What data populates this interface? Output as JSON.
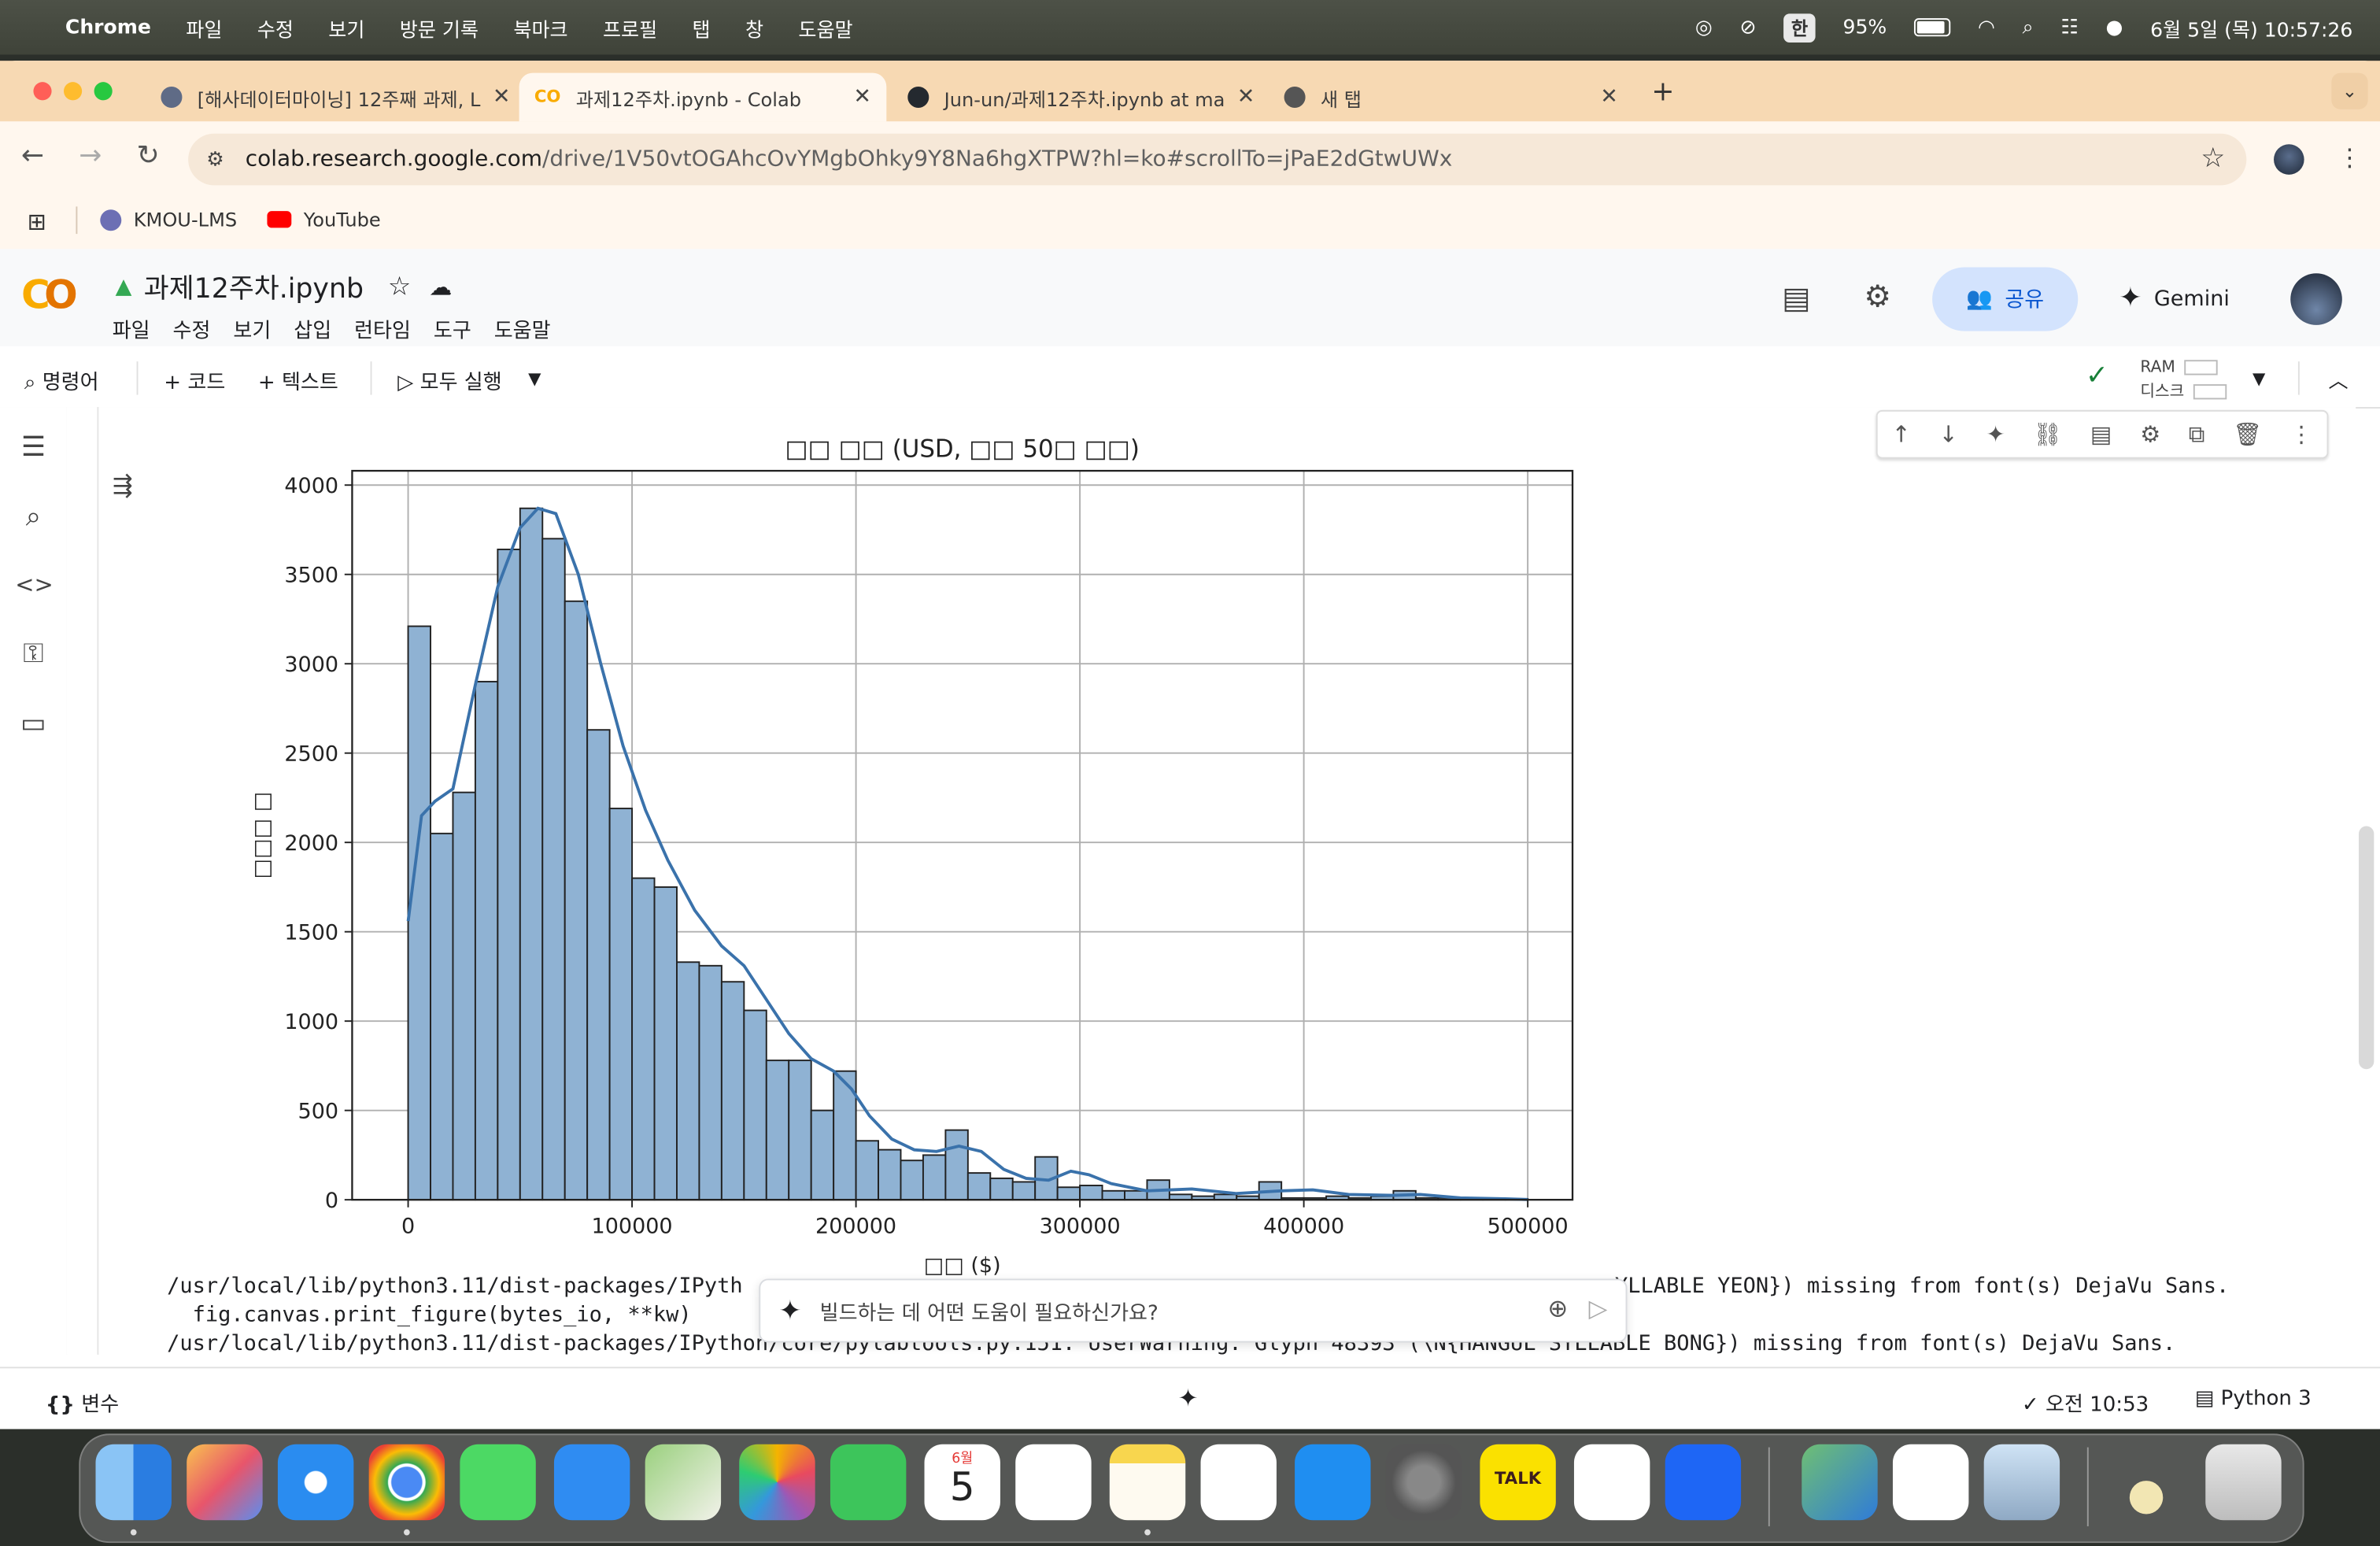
{
  "menubar": {
    "apple": "",
    "app_name": "Chrome",
    "items": [
      "파일",
      "수정",
      "보기",
      "방문 기록",
      "북마크",
      "프로필",
      "탭",
      "창",
      "도움말"
    ],
    "input_source": "한",
    "battery": "95%",
    "clock": "6월 5일 (목) 10:57:26"
  },
  "tabs": [
    {
      "title": "[해사데이터마이닝] 12주째 과제, L",
      "fav_color": "#5f6b86"
    },
    {
      "title": "과제12주차.ipynb - Colab",
      "fav_color": "#f9ab00",
      "active": true
    },
    {
      "title": "Jun-un/과제12주차.ipynb at ma",
      "fav_color": "#24292f"
    },
    {
      "title": "새 탭",
      "fav_color": "#555555"
    }
  ],
  "omnibox": {
    "host": "colab.research.google.com",
    "path": "/drive/1V50vtOGAhcOvYMgbOhky9Y8Na6hgXTPW?hl=ko#scrollTo=jPaE2dGtwUWx"
  },
  "bookmarks": [
    {
      "label": "KMOU-LMS"
    },
    {
      "label": "YouTube"
    }
  ],
  "colab": {
    "notebook_title": "과제12주차.ipynb",
    "menu": [
      "파일",
      "수정",
      "보기",
      "삽입",
      "런타임",
      "도구",
      "도움말"
    ],
    "share_label": "공유",
    "gemini_label": "Gemini",
    "toolbar": {
      "commands": "명령어",
      "add_code": "+ 코드",
      "add_text": "+ 텍스트",
      "run_all": "모두 실행",
      "ram": "RAM",
      "disk": "디스크"
    },
    "ai_placeholder": "빌드하는 데 어떤 도움이 필요하신가요?",
    "status": {
      "variables": "변수",
      "time": "오전 10:53",
      "kernel": "Python 3"
    }
  },
  "output": {
    "stderr_lines": [
      "/usr/local/lib/python3.11/dist-packages/IPyth",
      "YLLABLE YEON}) missing from font(s) DejaVu Sans.",
      "  fig.canvas.print_figure(bytes_io, **kw)",
      "/usr/local/lib/python3.11/dist-packages/IPython/core/pylabtools.py:151: UserWarning: Glyph 48393 (\\N{HANGUL SYLLABLE BONG}) missing from font(s) DejaVu Sans."
    ]
  },
  "chart_data": {
    "type": "bar",
    "title": "□□ □□ (USD, □□ 50□ □□)",
    "xlabel": "□□ ($)",
    "ylabel": "□□□ □",
    "xlim": [
      -25000,
      520000
    ],
    "ylim": [
      0,
      4080
    ],
    "x_ticks": [
      0,
      100000,
      200000,
      300000,
      400000,
      500000
    ],
    "y_ticks": [
      0,
      500,
      1000,
      1500,
      2000,
      2500,
      3000,
      3500,
      4000
    ],
    "bin_start": 0,
    "bin_width": 10000,
    "values": [
      3210,
      2050,
      2280,
      2900,
      3640,
      3870,
      3700,
      3350,
      2630,
      2190,
      1800,
      1750,
      1330,
      1310,
      1220,
      1060,
      780,
      780,
      500,
      720,
      330,
      280,
      220,
      250,
      390,
      150,
      120,
      100,
      240,
      70,
      80,
      50,
      50,
      110,
      30,
      20,
      30,
      20,
      100,
      10,
      10,
      20,
      10,
      20,
      50,
      10,
      10,
      5,
      5,
      5
    ],
    "kde": [
      [
        0,
        1560
      ],
      [
        6000,
        2150
      ],
      [
        12000,
        2230
      ],
      [
        20000,
        2300
      ],
      [
        30000,
        2880
      ],
      [
        40000,
        3430
      ],
      [
        50000,
        3760
      ],
      [
        58000,
        3870
      ],
      [
        66000,
        3840
      ],
      [
        76000,
        3500
      ],
      [
        86000,
        3000
      ],
      [
        96000,
        2540
      ],
      [
        106000,
        2180
      ],
      [
        116000,
        1900
      ],
      [
        128000,
        1620
      ],
      [
        140000,
        1420
      ],
      [
        150000,
        1310
      ],
      [
        160000,
        1120
      ],
      [
        170000,
        930
      ],
      [
        180000,
        790
      ],
      [
        190000,
        720
      ],
      [
        198000,
        620
      ],
      [
        206000,
        470
      ],
      [
        216000,
        340
      ],
      [
        226000,
        280
      ],
      [
        236000,
        270
      ],
      [
        246000,
        300
      ],
      [
        256000,
        270
      ],
      [
        266000,
        170
      ],
      [
        276000,
        120
      ],
      [
        286000,
        110
      ],
      [
        296000,
        160
      ],
      [
        304000,
        140
      ],
      [
        314000,
        90
      ],
      [
        330000,
        50
      ],
      [
        350000,
        60
      ],
      [
        370000,
        35
      ],
      [
        390000,
        50
      ],
      [
        404000,
        55
      ],
      [
        420000,
        30
      ],
      [
        440000,
        25
      ],
      [
        452000,
        30
      ],
      [
        470000,
        10
      ],
      [
        490000,
        5
      ],
      [
        500000,
        2
      ]
    ],
    "bar_color": "#8fb2d3",
    "edge_color": "#222222",
    "kde_color": "#3a72ab",
    "grid": true
  }
}
